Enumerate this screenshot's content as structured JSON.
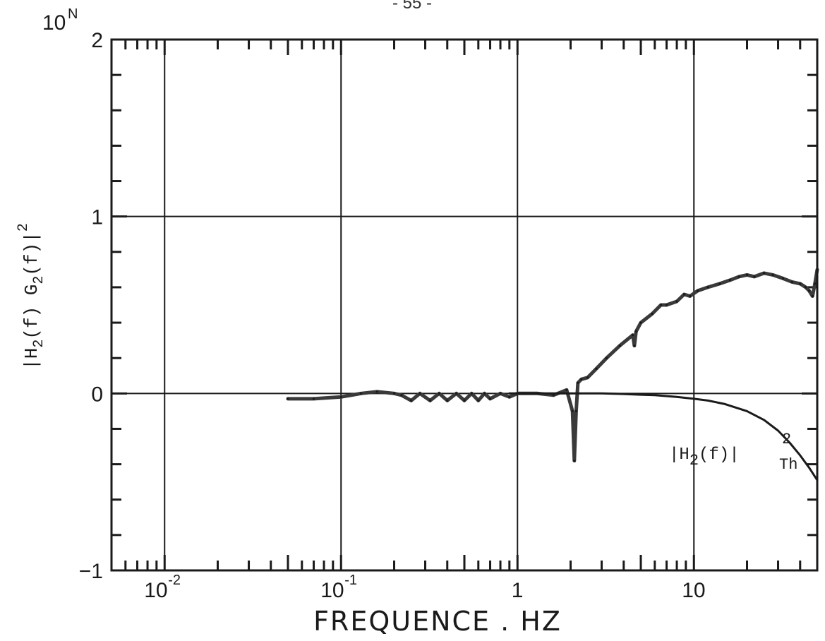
{
  "page_number": "- 55 -",
  "chart_data": {
    "type": "line",
    "x_scale": "log",
    "xlabel": "FREQUENCE . HZ",
    "x_ticks": [
      {
        "value": 0.01,
        "base": "10",
        "exp": "-2"
      },
      {
        "value": 0.1,
        "base": "10",
        "exp": "-1"
      },
      {
        "value": 1,
        "base": "1",
        "exp": ""
      },
      {
        "value": 10,
        "base": "10",
        "exp": ""
      }
    ],
    "xlim": [
      0.005,
      50
    ],
    "y_unit": "10",
    "y_unit_exp": "N",
    "ylabel": {
      "pre": "|H",
      "sub1": "2",
      "mid": "(f) G",
      "sub2": "2",
      "post": "(f)|",
      "sup": "2"
    },
    "ylim": [
      -1,
      2
    ],
    "y_ticks": [
      -1,
      0,
      1,
      2
    ],
    "y_tick_labels": [
      "−1",
      "0",
      "1",
      "2"
    ],
    "grid": true,
    "series": [
      {
        "role": "measured",
        "x": [
          0.05,
          0.07,
          0.1,
          0.13,
          0.16,
          0.2,
          0.22,
          0.25,
          0.28,
          0.32,
          0.36,
          0.4,
          0.45,
          0.5,
          0.55,
          0.6,
          0.65,
          0.7,
          0.8,
          0.9,
          1.0,
          1.1,
          1.3,
          1.6,
          1.9,
          2.05,
          2.1,
          2.15,
          2.2,
          2.3,
          2.5,
          2.8,
          3.2,
          3.8,
          4.5,
          4.6,
          4.7,
          5.0,
          5.8,
          6.5,
          7.0,
          8.0,
          8.8,
          9.5,
          10.5,
          12.0,
          14.0,
          16.0,
          18.0,
          20.0,
          22.0,
          25.0,
          28.0,
          32.0,
          36.0,
          40.0,
          43.0,
          45.0,
          47.0,
          48.5,
          50.0
        ],
        "y": [
          -0.03,
          -0.03,
          -0.02,
          0.0,
          0.01,
          0.0,
          -0.01,
          -0.04,
          0.0,
          -0.04,
          0.0,
          -0.04,
          0.0,
          -0.04,
          0.0,
          -0.04,
          0.0,
          -0.03,
          0.0,
          -0.02,
          0.0,
          0.0,
          0.0,
          -0.01,
          0.02,
          -0.1,
          -0.38,
          -0.1,
          0.06,
          0.08,
          0.09,
          0.14,
          0.2,
          0.27,
          0.33,
          0.27,
          0.35,
          0.4,
          0.45,
          0.5,
          0.5,
          0.52,
          0.56,
          0.55,
          0.58,
          0.6,
          0.62,
          0.64,
          0.66,
          0.67,
          0.66,
          0.68,
          0.67,
          0.65,
          0.63,
          0.62,
          0.6,
          0.58,
          0.55,
          0.62,
          0.7
        ]
      },
      {
        "role": "theoretical",
        "x": [
          0.9,
          1.5,
          2.0,
          3.0,
          4.0,
          5.0,
          6.0,
          8.0,
          10.0,
          12.0,
          15.0,
          20.0,
          25.0,
          30.0,
          35.0,
          40.0,
          45.0,
          50.0
        ],
        "y": [
          0.0,
          0.0,
          0.0,
          0.0,
          -0.003,
          -0.007,
          -0.01,
          -0.02,
          -0.03,
          -0.04,
          -0.06,
          -0.1,
          -0.15,
          -0.21,
          -0.28,
          -0.35,
          -0.42,
          -0.49
        ],
        "label": {
          "pre": "|H",
          "sub": "2",
          "mid": "(f)|",
          "sup": "2",
          "sub2": "Th"
        }
      }
    ]
  }
}
